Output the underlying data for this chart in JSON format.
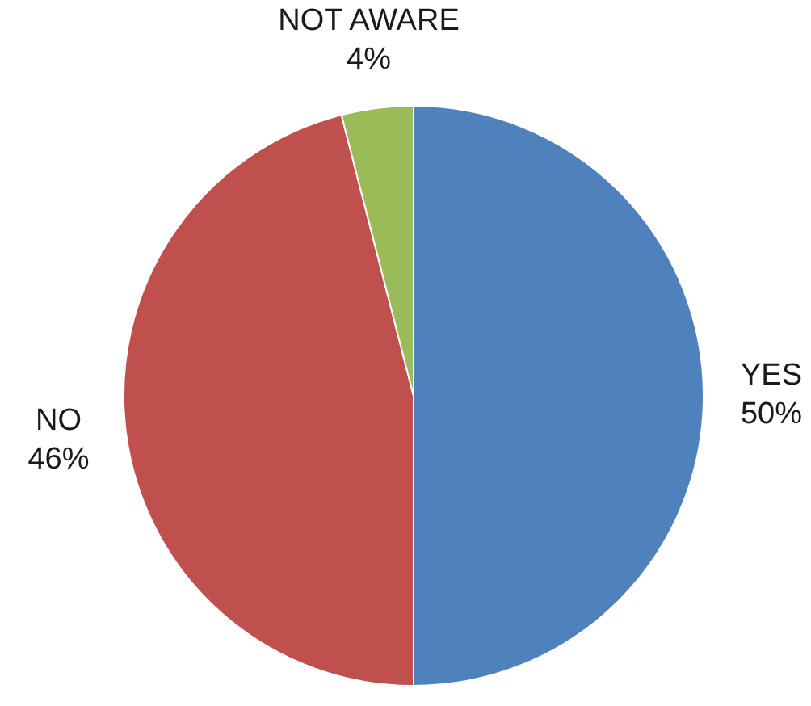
{
  "chart_data": {
    "type": "pie",
    "categories": [
      "YES",
      "NO",
      "NOT AWARE"
    ],
    "values": [
      50,
      46,
      4
    ],
    "colors": [
      "#4f81bd",
      "#c0504d",
      "#9bbb59"
    ],
    "value_labels": [
      "50%",
      "46%",
      "4%"
    ],
    "legend": false
  }
}
